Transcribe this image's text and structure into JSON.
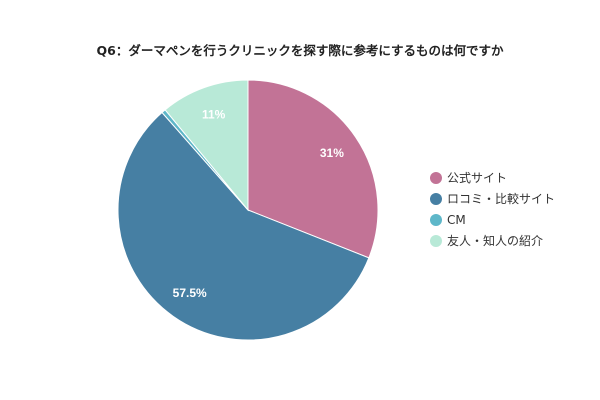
{
  "chart_data": {
    "type": "pie",
    "title": "Q6：ダーマペンを行うクリニックを探す際に参考にするものは何ですか",
    "legend_position": "right",
    "slices": [
      {
        "name": "公式サイト",
        "value": 31,
        "label": "31%",
        "color": "#c27396"
      },
      {
        "name": "ロコミ・比較サイト",
        "value": 57.5,
        "label": "57.5%",
        "color": "#467fa3"
      },
      {
        "name": "CM",
        "value": 0.5,
        "label": "",
        "color": "#5eb7c9"
      },
      {
        "name": "友人・知人の紹介",
        "value": 11,
        "label": "11%",
        "color": "#b8e9d7"
      }
    ]
  }
}
